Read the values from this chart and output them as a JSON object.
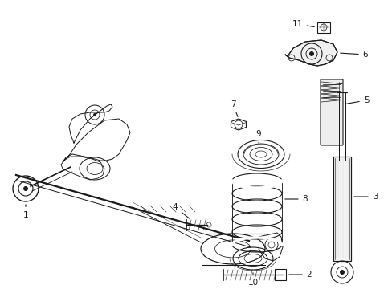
{
  "bg_color": "#ffffff",
  "fig_width": 4.89,
  "fig_height": 3.6,
  "dpi": 100,
  "lc": "#1a1a1a",
  "lw": 0.8,
  "fs": 7.5,
  "xlim": [
    0,
    489
  ],
  "ylim": [
    0,
    360
  ]
}
